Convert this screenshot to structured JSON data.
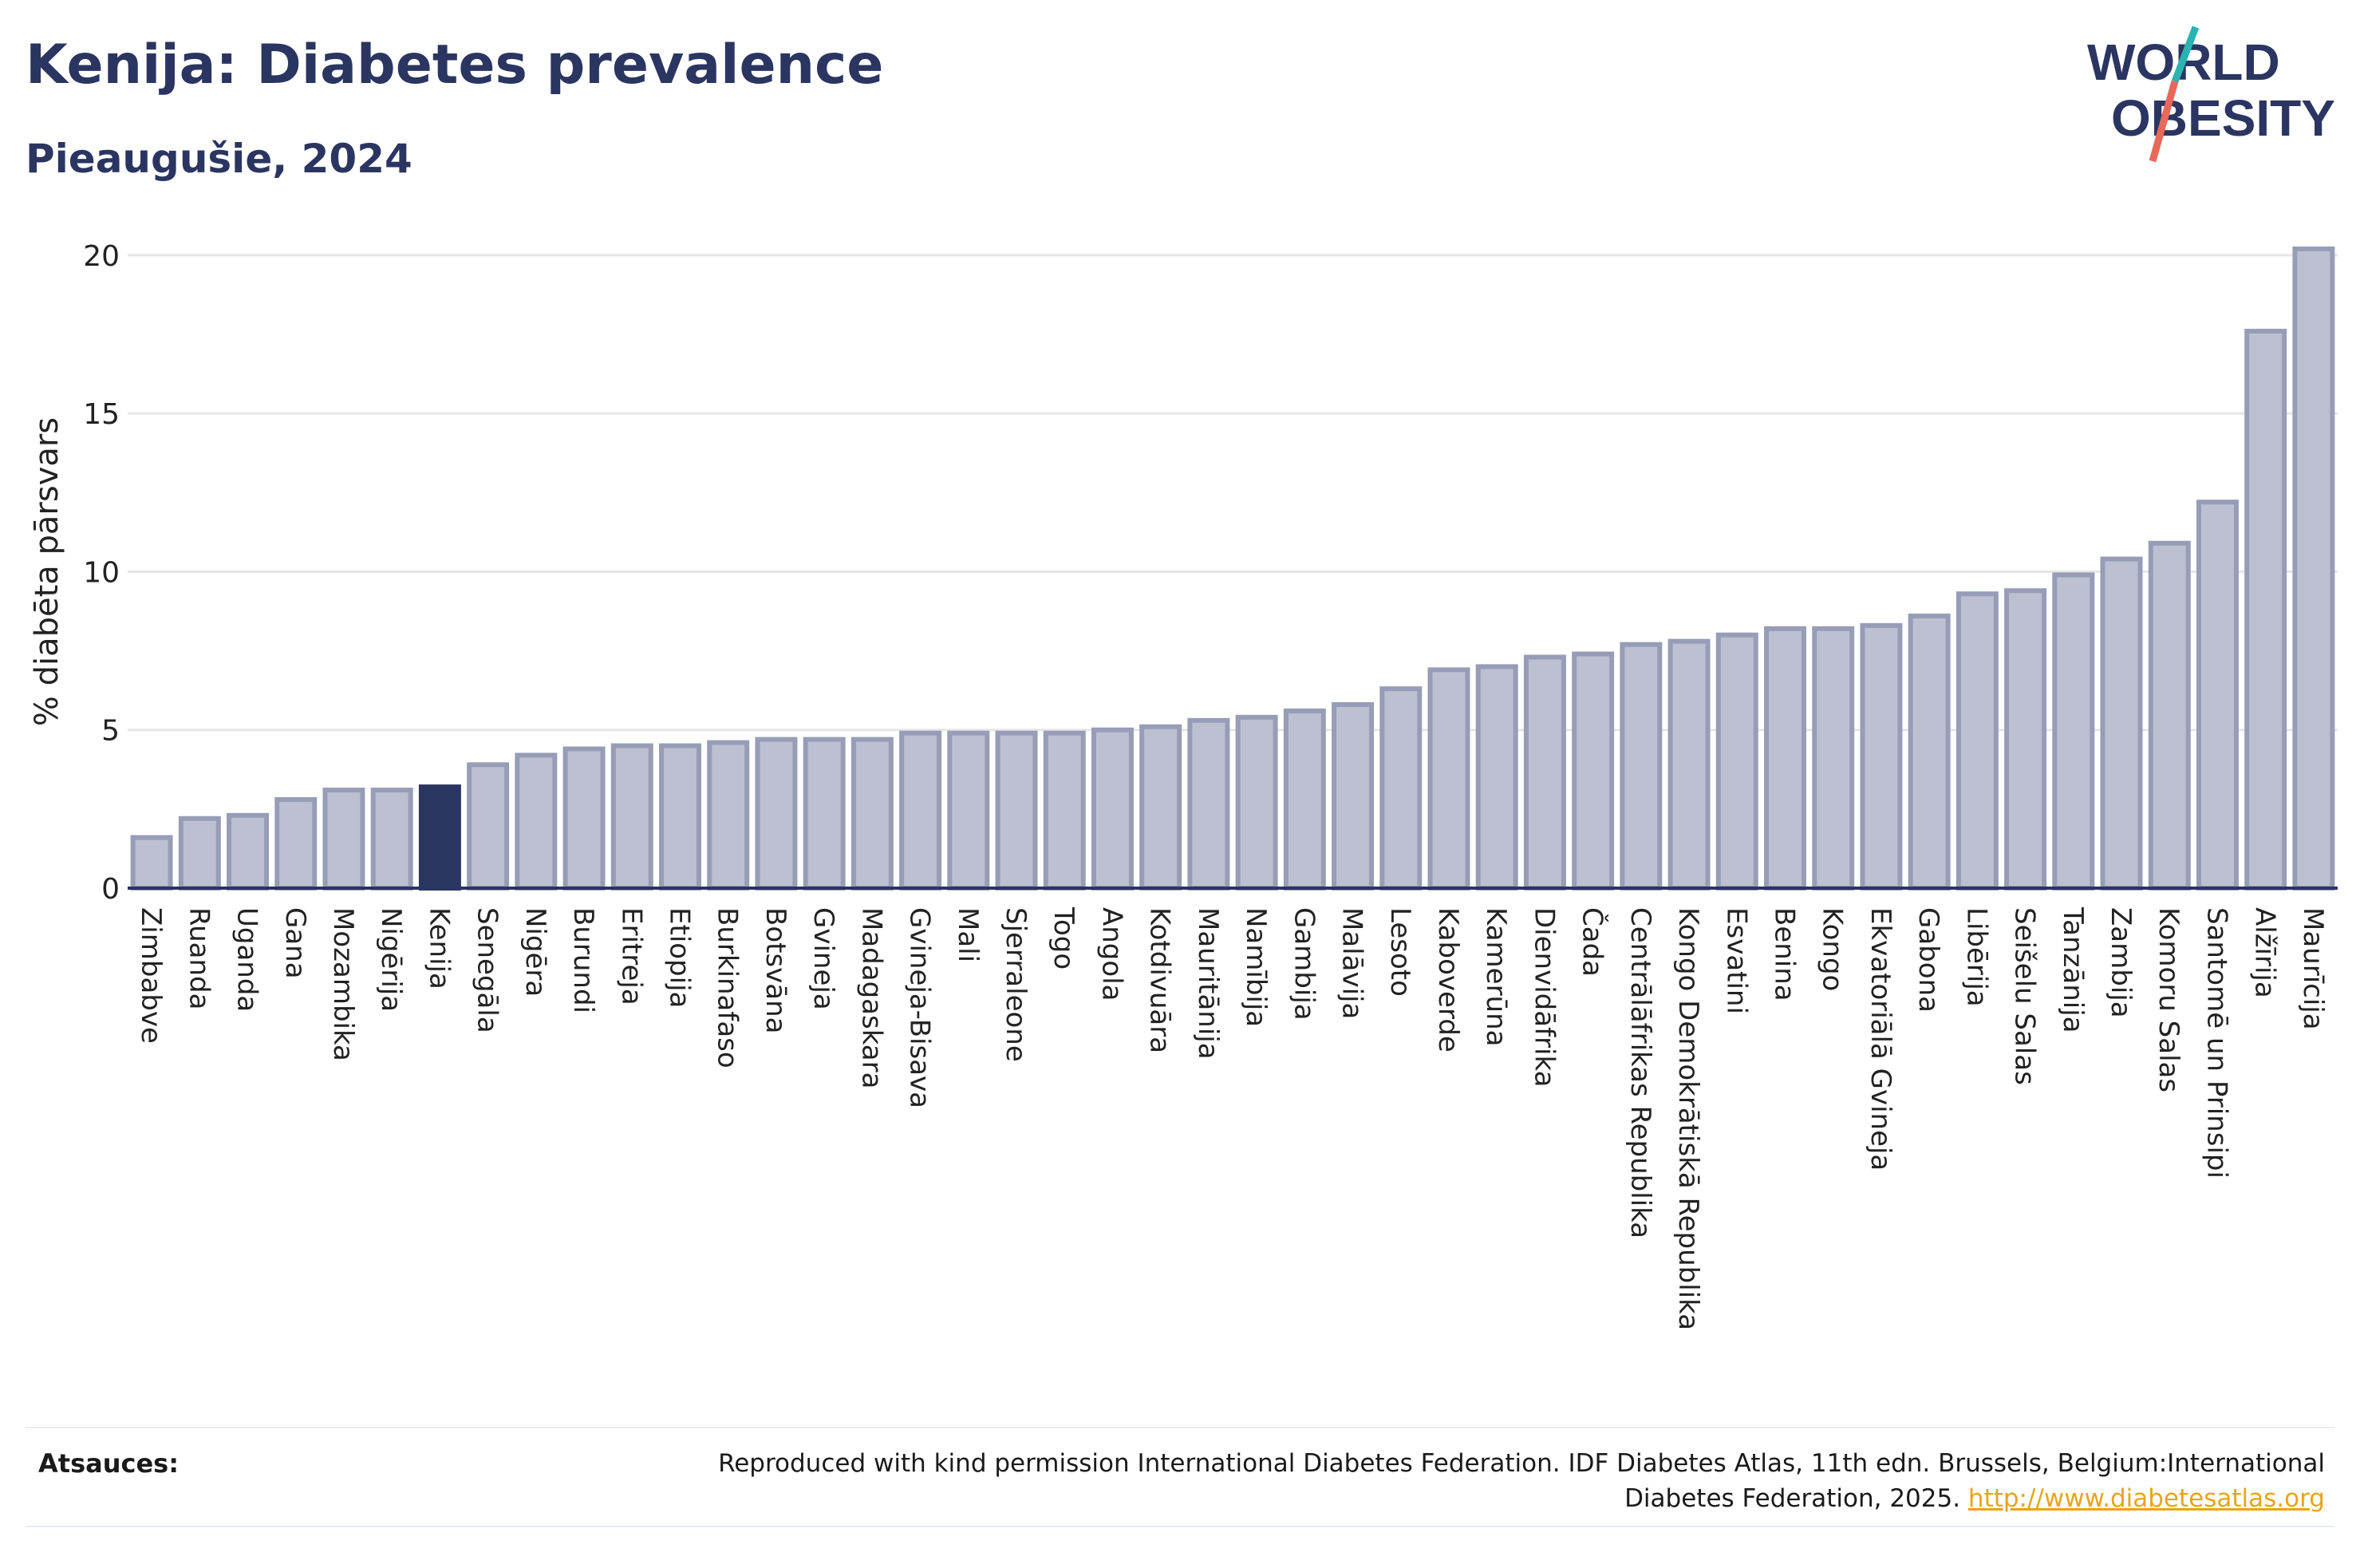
{
  "header": {
    "title": "Kenija: Diabetes prevalence",
    "subtitle": "Pieaugušie, 2024"
  },
  "logo": {
    "line1": "WORLD",
    "line2": "OBESITY",
    "colors": {
      "text": "#2b3561",
      "slash_top": "#2bb3b1",
      "slash_bottom": "#e8685a"
    }
  },
  "chart_data": {
    "type": "bar",
    "ylabel": "% diabēta pārsvars",
    "ylim": [
      0,
      20.5
    ],
    "yticks": [
      0,
      5,
      10,
      15,
      20
    ],
    "grid": true,
    "highlight": "Kenija",
    "colors": {
      "bar": "#bcc0d0",
      "bar_border": "#979db6",
      "highlight": "#2b3561",
      "axis": "#2b3561",
      "grid": "#e6e6e6"
    },
    "categories": [
      "Zimbabve",
      "Ruanda",
      "Uganda",
      "Gana",
      "Mozambika",
      "Nigērija",
      "Kenija",
      "Senegāla",
      "Nigēra",
      "Burundi",
      "Eritreja",
      "Etiopija",
      "Burkinafaso",
      "Botsvāna",
      "Gvineja",
      "Madagaskara",
      "Gvineja-Bisava",
      "Mali",
      "Sjerraleone",
      "Togo",
      "Angola",
      "Kotdivuāra",
      "Mauritānija",
      "Namībija",
      "Gambija",
      "Malāvija",
      "Lesoto",
      "Kaboverde",
      "Kamerūna",
      "Dienvidāfrika",
      "Čada",
      "Centrālāfrikas Republika",
      "Kongo Demokrātiskā Republika",
      "Esvatini",
      "Benina",
      "Kongo",
      "Ekvatoriālā Gvineja",
      "Gabona",
      "Libērija",
      "Seišelu Salas",
      "Tanzānija",
      "Zambija",
      "Komoru Salas",
      "Santomē un Prinsipi",
      "Alžīrija",
      "Maurīcija"
    ],
    "values": [
      1.6,
      2.2,
      2.3,
      2.8,
      3.1,
      3.1,
      3.2,
      3.9,
      4.2,
      4.4,
      4.5,
      4.5,
      4.6,
      4.7,
      4.7,
      4.7,
      4.9,
      4.9,
      4.9,
      4.9,
      5.0,
      5.1,
      5.3,
      5.4,
      5.6,
      5.8,
      6.3,
      6.9,
      7.0,
      7.3,
      7.4,
      7.7,
      7.8,
      8.0,
      8.2,
      8.2,
      8.3,
      8.6,
      9.3,
      9.4,
      9.9,
      10.4,
      10.9,
      12.2,
      17.6,
      20.2
    ]
  },
  "footer": {
    "sources_label": "Atsauces:",
    "sources_text": "Reproduced with kind permission International Diabetes Federation. IDF Diabetes Atlas, 11th edn. Brussels, Belgium:International Diabetes Federation, 2025.",
    "sources_link": "http://www.diabetesatlas.org"
  }
}
